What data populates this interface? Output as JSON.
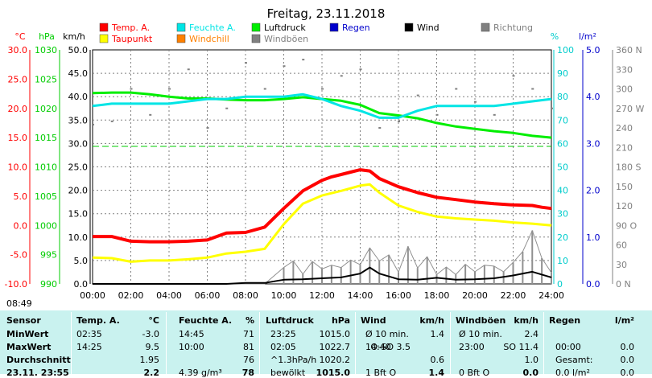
{
  "chart_data": {
    "type": "line",
    "title": "Freitag, 23.11.2018",
    "x": {
      "ticks": [
        "00:00",
        "02:00",
        "04:00",
        "06:00",
        "08:00",
        "10:00",
        "12:00",
        "14:00",
        "16:00",
        "18:00",
        "20:00",
        "22:00",
        "24:00"
      ],
      "range_hours": [
        0,
        24
      ]
    },
    "axes_units": {
      "temp": "°C",
      "pressure": "hPa",
      "wind": "km/h",
      "humidity": "%",
      "rain": "l/m²"
    },
    "axes": {
      "temp": {
        "ticks": [
          "30.0",
          "25.0",
          "20.0",
          "15.0",
          "10.0",
          "5.0",
          "0.0",
          "-5.0",
          "-10.0"
        ],
        "range": [
          -10,
          30
        ],
        "color": "#ff0000"
      },
      "pressure": {
        "ticks": [
          "1030",
          "1025",
          "1020",
          "1015",
          "1010",
          "1005",
          "1000",
          "995",
          "990"
        ],
        "range": [
          990,
          1030
        ],
        "color": "#00cc00"
      },
      "wind": {
        "ticks": [
          "50.0",
          "45.0",
          "40.0",
          "35.0",
          "30.0",
          "25.0",
          "20.0",
          "15.0",
          "10.0",
          "5.0",
          "0.0"
        ],
        "range": [
          0,
          50
        ],
        "color": "#000000"
      },
      "humidity": {
        "ticks": [
          "100",
          "90",
          "80",
          "70",
          "60",
          "50",
          "40",
          "30",
          "20",
          "10",
          "0"
        ],
        "range": [
          0,
          100
        ],
        "color": "#00cccc"
      },
      "rain": {
        "ticks": [
          "5.0",
          "4.0",
          "3.0",
          "2.0",
          "1.0",
          "0.0"
        ],
        "range": [
          0,
          5
        ],
        "color": "#0000cc"
      },
      "direction": {
        "ticks": [
          "360 N",
          "330",
          "300",
          "270 W",
          "240",
          "210",
          "180 S",
          "150",
          "120",
          "90 O",
          "60",
          "30",
          "0 N"
        ],
        "range": [
          0,
          360
        ],
        "color": "#808080"
      }
    },
    "legend": [
      {
        "name": "Temp. A.",
        "color": "#ff0000"
      },
      {
        "name": "Feuchte A.",
        "color": "#00e5e5"
      },
      {
        "name": "Luftdruck",
        "color": "#00ee00"
      },
      {
        "name": "Regen",
        "color": "#0000cc"
      },
      {
        "name": "Wind",
        "color": "#000000"
      },
      {
        "name": "Richtung",
        "color": "#808080"
      },
      {
        "name": "Taupunkt",
        "color": "#ffff00"
      },
      {
        "name": "Windchill",
        "color": "#ff8000"
      },
      {
        "name": "Windböen",
        "color": "#808080"
      }
    ],
    "series": [
      {
        "name": "Temp. A.",
        "axis": "temp",
        "x": [
          0,
          1,
          2,
          3,
          4,
          5,
          6,
          7,
          8,
          9,
          10,
          11,
          12,
          12.5,
          13,
          13.5,
          14,
          14.5,
          15,
          16,
          17,
          18,
          19,
          20,
          21,
          22,
          23,
          23.5,
          24
        ],
        "y": [
          -1.9,
          -1.9,
          -2.7,
          -2.8,
          -2.8,
          -2.7,
          -2.5,
          -1.3,
          -1.2,
          -0.3,
          2.9,
          5.9,
          7.7,
          8.3,
          8.7,
          9.1,
          9.5,
          9.3,
          8.0,
          6.6,
          5.6,
          4.8,
          4.4,
          4.0,
          3.7,
          3.5,
          3.4,
          3.1,
          2.9
        ]
      },
      {
        "name": "Taupunkt",
        "axis": "temp",
        "x": [
          0,
          1,
          2,
          3,
          4,
          5,
          6,
          7,
          8,
          9,
          10,
          11,
          12,
          13,
          14,
          14.5,
          15,
          16,
          17,
          18,
          19,
          20,
          21,
          22,
          23,
          24
        ],
        "y": [
          -5.5,
          -5.6,
          -6.2,
          -6.0,
          -6.0,
          -5.8,
          -5.5,
          -4.8,
          -4.5,
          -4.0,
          0.2,
          3.7,
          5.1,
          5.9,
          6.8,
          7.0,
          5.6,
          3.4,
          2.3,
          1.5,
          1.2,
          1.0,
          0.8,
          0.5,
          0.3,
          0.0
        ]
      },
      {
        "name": "Feuchte A.",
        "axis": "humidity",
        "x": [
          0,
          1,
          2,
          3,
          4,
          5,
          6,
          7,
          8,
          9,
          10,
          11,
          12,
          13,
          14,
          15,
          16,
          17,
          18,
          19,
          20,
          21,
          22,
          23,
          24
        ],
        "y": [
          76,
          77,
          77,
          77,
          77,
          78,
          79,
          79,
          80,
          80,
          80,
          81,
          79,
          76,
          74,
          71,
          71,
          74,
          76,
          76,
          76,
          76,
          77,
          78,
          79
        ]
      },
      {
        "name": "Luftdruck",
        "axis": "pressure",
        "x": [
          0,
          1,
          2,
          3,
          4,
          5,
          6,
          7,
          8,
          9,
          10,
          11,
          12,
          13,
          14,
          15,
          16,
          17,
          18,
          19,
          20,
          21,
          22,
          23,
          24
        ],
        "y": [
          1022.6,
          1022.7,
          1022.7,
          1022.4,
          1022.0,
          1021.7,
          1021.7,
          1021.5,
          1021.4,
          1021.4,
          1021.6,
          1021.9,
          1021.6,
          1021.3,
          1020.6,
          1019.2,
          1018.8,
          1018.3,
          1017.5,
          1016.9,
          1016.5,
          1016.1,
          1015.8,
          1015.3,
          1015.0
        ]
      },
      {
        "name": "Wind",
        "axis": "wind",
        "x": [
          0,
          6,
          7,
          8,
          9,
          10,
          11,
          12,
          13,
          14,
          14.5,
          15,
          16,
          17,
          18,
          19,
          20,
          21,
          22,
          23,
          24
        ],
        "y": [
          0,
          0,
          0,
          0.2,
          0.2,
          0.9,
          1.0,
          1.2,
          1.4,
          2.2,
          3.5,
          2.2,
          1.0,
          0.9,
          1.3,
          0.9,
          1.0,
          1.2,
          1.8,
          2.6,
          1.4
        ]
      },
      {
        "name": "Windböen",
        "axis": "wind",
        "x": [
          0,
          6,
          9,
          10,
          10.5,
          11,
          11.5,
          12,
          12.5,
          13,
          13.5,
          14,
          14.5,
          15,
          15.5,
          16,
          16.5,
          17,
          17.5,
          18,
          18.5,
          19,
          19.5,
          20,
          20.5,
          21,
          21.5,
          22,
          22.5,
          23,
          23.5,
          24
        ],
        "y": [
          0,
          0,
          0,
          3.5,
          4.9,
          2.1,
          4.8,
          3.2,
          4.0,
          3.5,
          5.1,
          4.1,
          7.7,
          4.9,
          6.2,
          2.5,
          8.0,
          3.4,
          5.8,
          2.0,
          3.6,
          2.0,
          4.2,
          2.6,
          4.0,
          3.8,
          2.6,
          4.6,
          6.9,
          11.4,
          5.5,
          2.4
        ]
      },
      {
        "name": "Richtung",
        "axis": "direction",
        "x": [
          0,
          1,
          2,
          3,
          4,
          5,
          6,
          7,
          8,
          9,
          10,
          11,
          12,
          13,
          14,
          15,
          16,
          17,
          18,
          19,
          20,
          21,
          22,
          23,
          24
        ],
        "y": [
          245,
          250,
          300,
          260,
          300,
          330,
          240,
          270,
          340,
          300,
          335,
          345,
          300,
          320,
          330,
          240,
          250,
          290,
          260,
          300,
          280,
          260,
          320,
          300,
          270
        ]
      }
    ],
    "reference_line": {
      "axis": "temp",
      "value": 13.5,
      "color": "#00cc00"
    },
    "grid": true
  },
  "time_label": "08:49",
  "table": {
    "headers": [
      "Sensor",
      "Temp. A.",
      "°C",
      "Feuchte A.",
      "%",
      "Luftdruck",
      "hPa",
      "Wind",
      "km/h",
      "Windböen",
      "km/h",
      "Regen",
      "l/m²"
    ],
    "rows": [
      {
        "label": "MinWert",
        "c": [
          "02:35",
          "-3.0",
          "14:45",
          "71",
          "23:25",
          "1015.0",
          "Ø 10 min.",
          "",
          "1.4",
          "Ø 10 min.",
          "2.4",
          "",
          ""
        ]
      },
      {
        "label": "MaxWert",
        "c": [
          "14:25",
          "9.5",
          "10:00",
          "81",
          "02:05",
          "1022.7",
          "14:40",
          "O-SO 3.5",
          "",
          "23:00",
          "SO 11.4",
          "00:00",
          "0.0"
        ]
      },
      {
        "label": "Durchschnitt",
        "c": [
          "",
          "1.95",
          "",
          "76",
          "^1.3hPa/h",
          "1020.2",
          "",
          "",
          "0.6",
          "",
          "1.0",
          "Gesamt:",
          "0.0"
        ]
      },
      {
        "label": "23.11. 23:55",
        "c": [
          "",
          "2.2",
          "4.39 g/m³",
          "78",
          "bewölkt",
          "1015.0",
          "1 Bft O",
          "",
          "1.4",
          "0 Bft O",
          "0.0",
          "0.0 l/m²",
          "0.0"
        ]
      }
    ]
  }
}
